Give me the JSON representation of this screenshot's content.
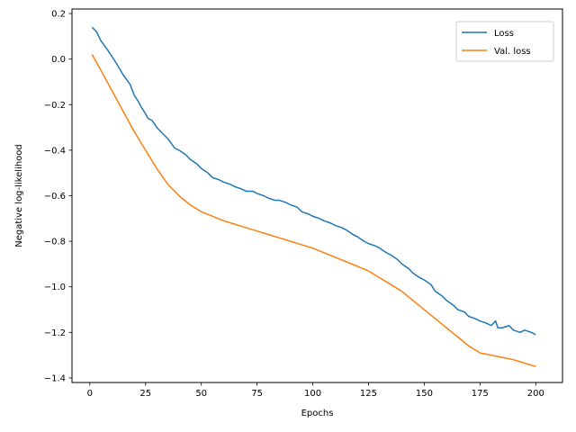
{
  "chart_data": {
    "type": "line",
    "title": "",
    "xlabel": "Epochs",
    "ylabel": "Negative log-likelihood",
    "xlim": [
      -8,
      212
    ],
    "ylim": [
      -1.42,
      0.22
    ],
    "xticks": [
      0,
      25,
      50,
      75,
      100,
      125,
      150,
      175,
      200
    ],
    "yticks": [
      0.2,
      0.0,
      -0.2,
      -0.4,
      -0.6,
      -0.8,
      -1.0,
      -1.2,
      -1.4
    ],
    "xtick_labels": [
      "0",
      "25",
      "50",
      "75",
      "100",
      "125",
      "150",
      "175",
      "200"
    ],
    "ytick_labels": [
      "0.2",
      "0.0",
      "−0.2",
      "−0.4",
      "−0.6",
      "−0.8",
      "−1.0",
      "−1.2",
      "−1.4"
    ],
    "grid": false,
    "legend": "top-right",
    "series": [
      {
        "name": "Loss",
        "color": "#1f77b4",
        "x": [
          1,
          3,
          5,
          8,
          10,
          12,
          15,
          18,
          20,
          22,
          23,
          25,
          26,
          28,
          30,
          32,
          35,
          38,
          40,
          43,
          45,
          48,
          50,
          53,
          55,
          58,
          60,
          63,
          65,
          68,
          70,
          73,
          75,
          78,
          80,
          83,
          85,
          88,
          90,
          93,
          95,
          98,
          100,
          103,
          105,
          108,
          110,
          113,
          115,
          118,
          120,
          123,
          125,
          128,
          130,
          133,
          135,
          138,
          140,
          143,
          145,
          148,
          150,
          153,
          155,
          158,
          160,
          163,
          165,
          168,
          170,
          173,
          175,
          178,
          180,
          182,
          183,
          185,
          188,
          190,
          193,
          195,
          198,
          200
        ],
        "values": [
          0.14,
          0.12,
          0.08,
          0.04,
          0.01,
          -0.02,
          -0.07,
          -0.11,
          -0.16,
          -0.19,
          -0.21,
          -0.24,
          -0.26,
          -0.27,
          -0.3,
          -0.32,
          -0.35,
          -0.39,
          -0.4,
          -0.42,
          -0.44,
          -0.46,
          -0.48,
          -0.5,
          -0.52,
          -0.53,
          -0.54,
          -0.55,
          -0.56,
          -0.57,
          -0.58,
          -0.58,
          -0.59,
          -0.6,
          -0.61,
          -0.62,
          -0.62,
          -0.63,
          -0.64,
          -0.65,
          -0.67,
          -0.68,
          -0.69,
          -0.7,
          -0.71,
          -0.72,
          -0.73,
          -0.74,
          -0.75,
          -0.77,
          -0.78,
          -0.8,
          -0.81,
          -0.82,
          -0.83,
          -0.85,
          -0.86,
          -0.88,
          -0.9,
          -0.92,
          -0.94,
          -0.96,
          -0.97,
          -0.99,
          -1.02,
          -1.04,
          -1.06,
          -1.08,
          -1.1,
          -1.11,
          -1.13,
          -1.14,
          -1.15,
          -1.16,
          -1.17,
          -1.15,
          -1.18,
          -1.18,
          -1.17,
          -1.19,
          -1.2,
          -1.19,
          -1.2,
          -1.21
        ]
      },
      {
        "name": "Val. loss",
        "color": "#ff7f0e",
        "x": [
          1,
          5,
          10,
          15,
          20,
          25,
          30,
          35,
          40,
          45,
          50,
          55,
          60,
          65,
          70,
          75,
          80,
          85,
          90,
          95,
          100,
          105,
          110,
          115,
          120,
          125,
          130,
          135,
          140,
          145,
          150,
          155,
          160,
          165,
          170,
          175,
          180,
          185,
          190,
          195,
          200
        ],
        "values": [
          0.02,
          -0.05,
          -0.14,
          -0.23,
          -0.32,
          -0.4,
          -0.48,
          -0.55,
          -0.6,
          -0.64,
          -0.67,
          -0.69,
          -0.71,
          -0.725,
          -0.74,
          -0.755,
          -0.77,
          -0.785,
          -0.8,
          -0.815,
          -0.83,
          -0.85,
          -0.87,
          -0.89,
          -0.91,
          -0.93,
          -0.96,
          -0.99,
          -1.02,
          -1.06,
          -1.1,
          -1.14,
          -1.18,
          -1.22,
          -1.26,
          -1.29,
          -1.3,
          -1.31,
          -1.32,
          -1.335,
          -1.35
        ]
      }
    ]
  }
}
